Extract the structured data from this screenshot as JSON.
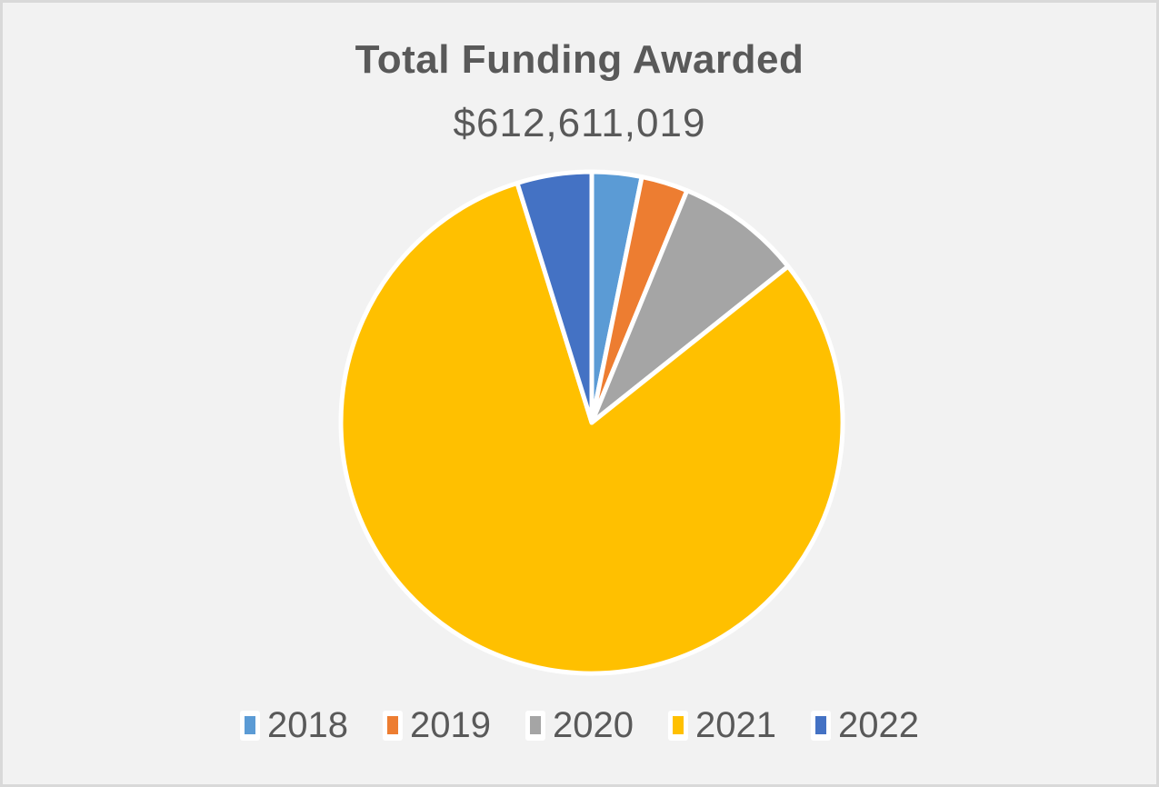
{
  "chart": {
    "title": "Total Funding Awarded",
    "subtitle": "$612,611,019",
    "background": "#f2f2f2",
    "border_color": "#d9d9d9"
  },
  "chart_data": {
    "type": "pie",
    "title": "Total Funding Awarded",
    "subtitle": "$612,611,019",
    "total": 612611019,
    "categories": [
      "2018",
      "2019",
      "2020",
      "2021",
      "2022"
    ],
    "values_percent": [
      3.2,
      3.0,
      8.1,
      80.9,
      4.8
    ],
    "colors": [
      "#5b9bd5",
      "#ed7d31",
      "#a5a5a5",
      "#ffc000",
      "#4472c4"
    ],
    "start_angle_deg": 0,
    "direction": "clockwise",
    "legend_position": "bottom",
    "data_labels": false,
    "slice_border_color": "#ffffff"
  },
  "legend": {
    "items": [
      {
        "label": "2018",
        "color": "#5b9bd5"
      },
      {
        "label": "2019",
        "color": "#ed7d31"
      },
      {
        "label": "2020",
        "color": "#a5a5a5"
      },
      {
        "label": "2021",
        "color": "#ffc000"
      },
      {
        "label": "2022",
        "color": "#4472c4"
      }
    ]
  }
}
